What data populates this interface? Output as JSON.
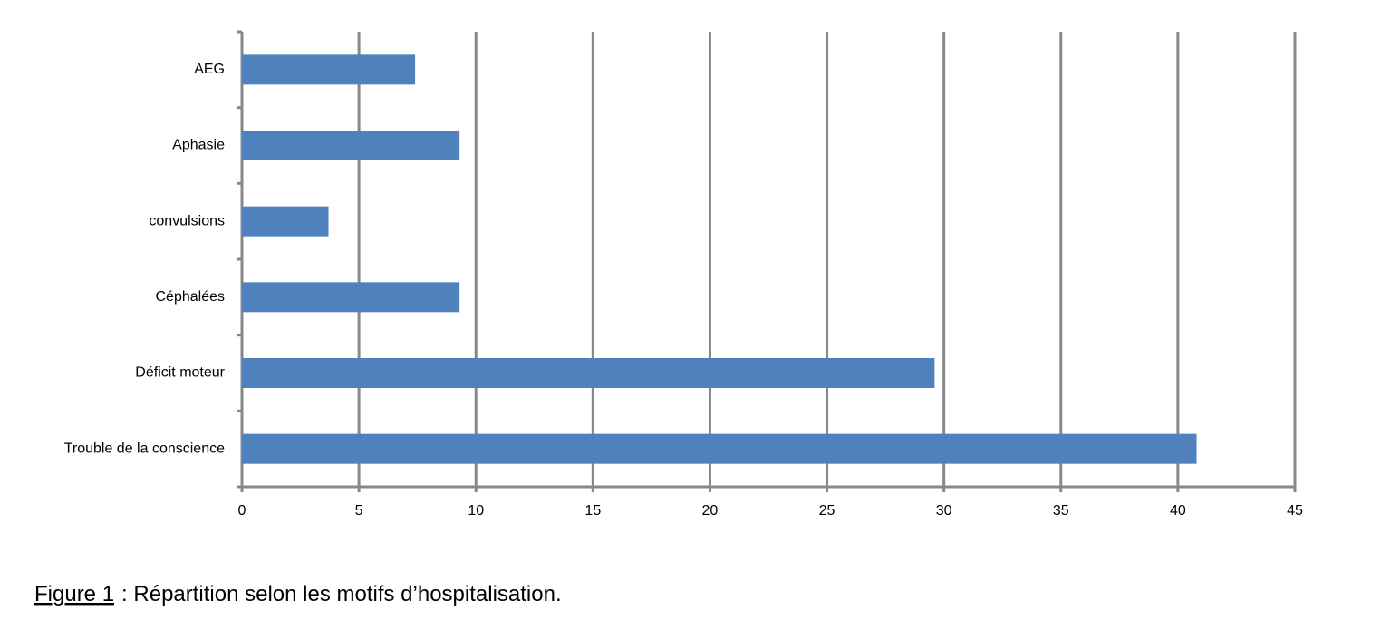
{
  "chart_data": {
    "type": "bar",
    "orientation": "horizontal",
    "categories": [
      "AEG",
      "Aphasie",
      "convulsions",
      "Céphalées",
      "Déficit moteur",
      "Trouble de la conscience"
    ],
    "values": [
      7.4,
      9.3,
      3.7,
      9.3,
      29.6,
      40.8
    ],
    "color": "#4f81bd",
    "xlim": [
      0,
      45
    ],
    "xticks": [
      0,
      5,
      10,
      15,
      20,
      25,
      30,
      35,
      40,
      45
    ],
    "grid": true,
    "caption_label": "Figure 1",
    "caption_text": ": Répartition selon les motifs d’hospitalisation."
  }
}
